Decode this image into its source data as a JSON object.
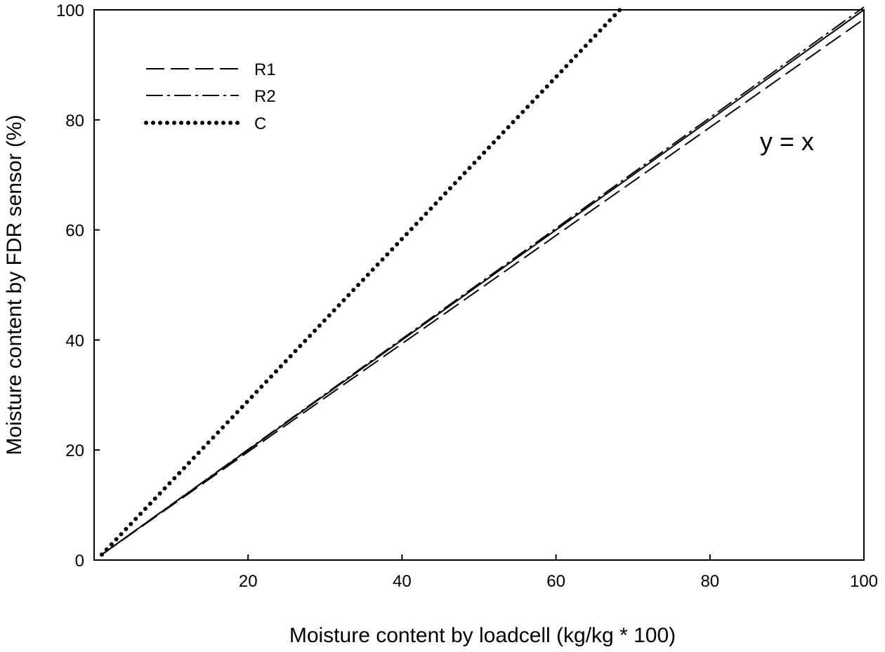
{
  "chart_data": {
    "type": "line",
    "title": "",
    "xlabel": "Moisture content by loadcell (kg/kg * 100)",
    "ylabel": "Moisture content by FDR sensor (%)",
    "xlim": [
      0,
      100
    ],
    "ylim": [
      0,
      100
    ],
    "x_ticks": [
      20,
      40,
      60,
      80,
      100
    ],
    "y_ticks": [
      0,
      20,
      40,
      60,
      80,
      100
    ],
    "grid": false,
    "legend_position": "top-left",
    "series": [
      {
        "name": "R1",
        "style": "dashed",
        "x": [
          1,
          100
        ],
        "y": [
          1,
          98.3
        ]
      },
      {
        "name": "R2",
        "style": "dash-dot",
        "x": [
          1,
          100
        ],
        "y": [
          1,
          100.5
        ]
      },
      {
        "name": "C",
        "style": "dotted",
        "x": [
          1,
          68.3
        ],
        "y": [
          1,
          100
        ]
      },
      {
        "name": "",
        "style": "solid",
        "x": [
          1,
          100
        ],
        "y": [
          1,
          100
        ]
      }
    ],
    "annotations": [
      {
        "text": "y = x",
        "x": 90,
        "y": 76
      }
    ]
  }
}
